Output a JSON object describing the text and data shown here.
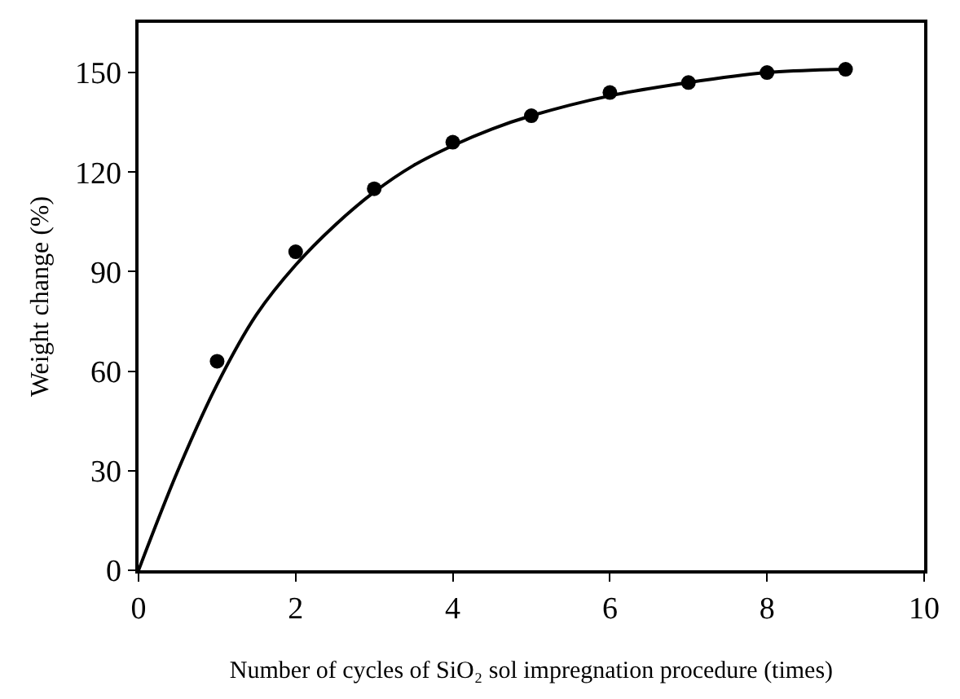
{
  "chart_data": {
    "type": "scatter",
    "xlabel": "Number of cycles of SiO₂ sol impregnation procedure (times)",
    "ylabel": "Weight change (%)",
    "xlim": [
      0,
      10
    ],
    "xticks": [
      0,
      2,
      4,
      6,
      8,
      10
    ],
    "ylim": [
      0,
      165
    ],
    "yticks": [
      0,
      30,
      60,
      90,
      120,
      150
    ],
    "series": [
      {
        "color": "#000000",
        "marker": "circle",
        "x": [
          1,
          2,
          3,
          4,
          5,
          6,
          7,
          8,
          9
        ],
        "values": [
          63,
          96,
          115,
          129,
          137,
          144,
          147,
          150,
          151
        ]
      },
      {
        "type": "line",
        "color": "#000000",
        "line_style": "solid",
        "x": [
          0,
          0.5,
          1,
          1.5,
          2,
          2.5,
          3,
          3.5,
          4,
          4.5,
          5,
          6,
          7,
          8,
          9
        ],
        "values": [
          0,
          30,
          56,
          77,
          92,
          104,
          114,
          122,
          128,
          133,
          137,
          143,
          147,
          150,
          151
        ]
      }
    ]
  }
}
